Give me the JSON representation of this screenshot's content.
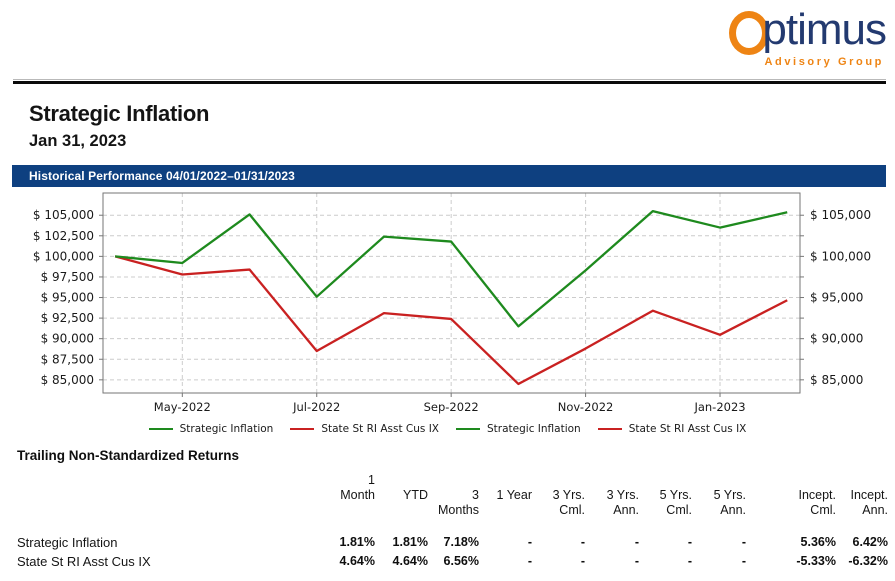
{
  "logo": {
    "name_rest": "ptimus",
    "tagline": "Advisory Group",
    "navy": "#233a70",
    "orange": "#ee8414"
  },
  "header": {
    "title": "Strategic Inflation",
    "date": "Jan 31, 2023"
  },
  "section_bar": {
    "label": "Historical Performance 04/01/2022–01/31/2023",
    "background": "#0e4080"
  },
  "chart_data": {
    "type": "line",
    "title": "Historical Performance 04/01/2022–01/31/2023",
    "x_labels": [
      "Apr 1, 2022",
      "Apr 30, 2022",
      "May 31, 2022",
      "Jun 30, 2022",
      "Jul 31, 2022",
      "Aug 31, 2022",
      "Sep 30, 2022",
      "Oct 31, 2022",
      "Nov 30, 2022",
      "Dec 31, 2022",
      "Jan 31, 2023"
    ],
    "series": [
      {
        "name": "Strategic Inflation",
        "color": "#1e8a1e",
        "values": [
          100000,
          99200,
          105100,
          95100,
          102400,
          101800,
          91500,
          98300,
          105500,
          103500,
          105360
        ]
      },
      {
        "name": "State St RI Asst Cus IX",
        "color": "#c92121",
        "values": [
          100000,
          97800,
          98400,
          88500,
          93100,
          92400,
          84500,
          88800,
          93400,
          90470,
          94670
        ]
      }
    ],
    "x_ticks": [
      {
        "i": 1,
        "label": "May-2022"
      },
      {
        "i": 3,
        "label": "Jul-2022"
      },
      {
        "i": 5,
        "label": "Sep-2022"
      },
      {
        "i": 7,
        "label": "Nov-2022"
      },
      {
        "i": 9,
        "label": "Jan-2023"
      }
    ],
    "y_ticks": [
      {
        "value": 85000,
        "left": "$ 85,000",
        "right": "$ 85,000"
      },
      {
        "value": 87500,
        "left": "$ 87,500",
        "right": null
      },
      {
        "value": 90000,
        "left": "$ 90,000",
        "right": "$ 90,000"
      },
      {
        "value": 92500,
        "left": "$ 92,500",
        "right": null
      },
      {
        "value": 95000,
        "left": "$ 95,000",
        "right": "$ 95,000"
      },
      {
        "value": 97500,
        "left": "$ 97,500",
        "right": null
      },
      {
        "value": 100000,
        "left": "$ 100,000",
        "right": "$ 100,000"
      },
      {
        "value": 102500,
        "left": "$ 102,500",
        "right": null
      },
      {
        "value": 105000,
        "left": "$ 105,000",
        "right": "$ 105,000"
      }
    ],
    "xlim": [
      -0.18,
      10.19
    ],
    "ylim": [
      83400,
      107700
    ],
    "grid": true,
    "grid_color": "#cccccc",
    "axis_color": "#767676",
    "legend_position": "bottom-center",
    "legend": [
      {
        "label": "Strategic Inflation",
        "color": "#1e8a1e"
      },
      {
        "label": "State St RI Asst Cus IX",
        "color": "#c92121"
      },
      {
        "label": "Strategic Inflation",
        "color": "#1e8a1e"
      },
      {
        "label": "State St RI Asst Cus IX",
        "color": "#c92121"
      }
    ]
  },
  "returns_table": {
    "title": "Trailing Non-Standardized Returns",
    "columns": [
      {
        "l1": "1 Month",
        "l2": ""
      },
      {
        "l1": "YTD",
        "l2": ""
      },
      {
        "l1": "3",
        "l2": "Months"
      },
      {
        "l1": "1 Year",
        "l2": ""
      },
      {
        "l1": "3 Yrs.",
        "l2": "Cml."
      },
      {
        "l1": "3 Yrs.",
        "l2": "Ann."
      },
      {
        "l1": "5 Yrs.",
        "l2": "Cml."
      },
      {
        "l1": "5 Yrs.",
        "l2": "Ann."
      },
      {
        "l1": "Incept.",
        "l2": "Cml."
      },
      {
        "l1": "Incept.",
        "l2": "Ann."
      }
    ],
    "rows": [
      {
        "label": "Strategic Inflation",
        "values": [
          "1.81%",
          "1.81%",
          "7.18%",
          "-",
          "-",
          "-",
          "-",
          "-",
          "5.36%",
          "6.42%"
        ]
      },
      {
        "label": "State St RI Asst Cus IX",
        "values": [
          "4.64%",
          "4.64%",
          "6.56%",
          "-",
          "-",
          "-",
          "-",
          "-",
          "-5.33%",
          "-6.32%"
        ]
      }
    ]
  }
}
